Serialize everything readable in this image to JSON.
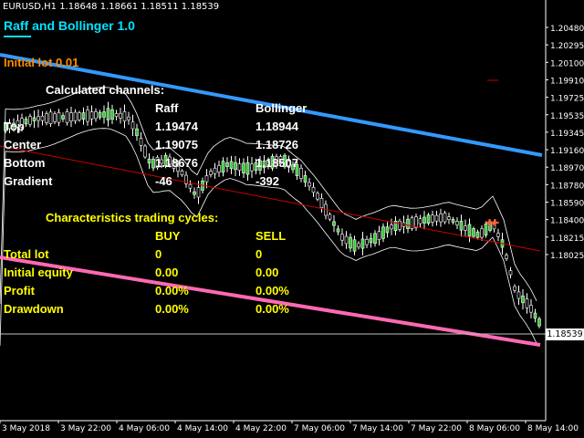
{
  "header": {
    "symbol_info": "EURUSD,H1  1.18648 1.18661 1.18511 1.18539"
  },
  "indicator": {
    "title": "Raff and Bollinger 1.0",
    "initial_lot": "Initial lot 0.01",
    "title_color": "#00e5ff",
    "lot_color": "#ff8c00"
  },
  "channels": {
    "heading": "Calculated channels:",
    "col_raff": "Raff",
    "col_boll": "Bollinger",
    "rows": [
      {
        "label": "Top",
        "raff": "1.19474",
        "boll": "1.18944"
      },
      {
        "label": "Center",
        "raff": "1.19075",
        "boll": "1.18726"
      },
      {
        "label": "Bottom",
        "raff": "1.18676",
        "boll": "1.18507"
      },
      {
        "label": "Gradient",
        "raff": "-46",
        "boll": "-392"
      }
    ]
  },
  "cycles": {
    "heading": "Characteristics trading cycles:",
    "col_buy": "BUY",
    "col_sell": "SELL",
    "rows": [
      {
        "label": "Total lot",
        "buy": "0",
        "sell": "0"
      },
      {
        "label": "Initial equity",
        "buy": "0.00",
        "sell": "0.00"
      },
      {
        "label": "Profit",
        "buy": "0.00%",
        "sell": "0.00%"
      },
      {
        "label": "Drawdown",
        "buy": "0.00%",
        "sell": "0.00%"
      }
    ],
    "color": "#ffff00"
  },
  "price_axis": {
    "labels": [
      "1.20480",
      "1.20295",
      "1.20100",
      "1.19910",
      "1.19725",
      "1.19535",
      "1.19345",
      "1.19160",
      "1.18970",
      "1.18780",
      "1.18590",
      "1.18400",
      "1.18215",
      "1.18025"
    ],
    "current_price": "1.18539"
  },
  "time_axis": {
    "labels": [
      "3 May 2018",
      "3 May 22:00",
      "4 May 06:00",
      "4 May 14:00",
      "4 May 22:00",
      "7 May 06:00",
      "7 May 14:00",
      "7 May 22:00",
      "8 May 06:00",
      "8 May 14:00"
    ]
  },
  "colors": {
    "raff_top": "#3399ff",
    "raff_bottom": "#ff69b4",
    "center_line": "#cc0000",
    "bollinger": "#ffffff",
    "candle_up": "#32cd32"
  }
}
